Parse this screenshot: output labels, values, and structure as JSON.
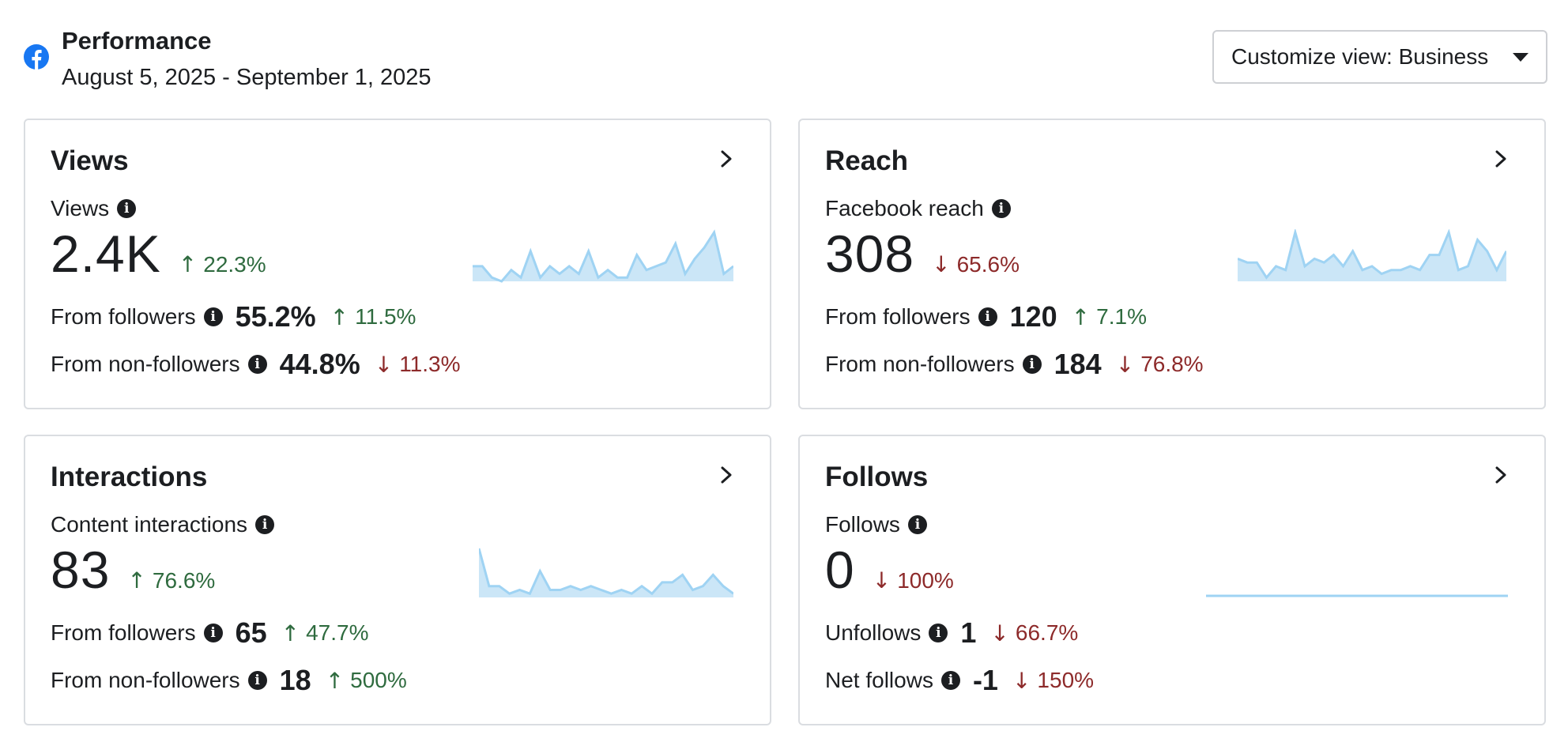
{
  "header": {
    "title": "Performance",
    "date_range": "August 5, 2025 - September 1, 2025",
    "customize_label": "Customize view: Business"
  },
  "colors": {
    "up": "#2f6b3f",
    "down": "#8d2a2a",
    "sparkline_fill": "#cbe6f7",
    "sparkline_line": "#9fd3f3",
    "facebook_blue": "#1877f2"
  },
  "icons": {
    "brand": "facebook-icon",
    "info": "info-icon",
    "chevron": "chevron-right-icon",
    "dropdown": "caret-down-icon"
  },
  "cards": [
    {
      "title": "Views",
      "metric_label": "Views",
      "value": "2.4K",
      "change": "22.3%",
      "direction": "up",
      "rows": [
        {
          "label": "From followers",
          "value": "55.2%",
          "change": "11.5%",
          "direction": "up"
        },
        {
          "label": "From non-followers",
          "value": "44.8%",
          "change": "11.3%",
          "direction": "down"
        }
      ],
      "sparkline": [
        4,
        4,
        1,
        0,
        3,
        1,
        8,
        1,
        4,
        2,
        4,
        2,
        8,
        1,
        3,
        1,
        1,
        7,
        3,
        4,
        5,
        10,
        2,
        6,
        9,
        13,
        2,
        4
      ]
    },
    {
      "title": "Reach",
      "metric_label": "Facebook reach",
      "value": "308",
      "change": "65.6%",
      "direction": "down",
      "rows": [
        {
          "label": "From followers",
          "value": "120",
          "change": "7.1%",
          "direction": "up"
        },
        {
          "label": "From non-followers",
          "value": "184",
          "change": "76.8%",
          "direction": "down"
        }
      ],
      "sparkline": [
        6,
        5,
        5,
        1,
        4,
        3,
        13,
        4,
        6,
        5,
        7,
        4,
        8,
        3,
        4,
        2,
        3,
        3,
        4,
        3,
        7,
        7,
        13,
        3,
        4,
        11,
        8,
        3,
        8
      ]
    },
    {
      "title": "Interactions",
      "metric_label": "Content interactions",
      "value": "83",
      "change": "76.6%",
      "direction": "up",
      "rows": [
        {
          "label": "From followers",
          "value": "65",
          "change": "47.7%",
          "direction": "up"
        },
        {
          "label": "From non-followers",
          "value": "18",
          "change": "500%",
          "direction": "up"
        }
      ],
      "sparkline": [
        13,
        3,
        3,
        1,
        2,
        1,
        7,
        2,
        2,
        3,
        2,
        3,
        2,
        1,
        2,
        1,
        3,
        1,
        4,
        4,
        6,
        2,
        3,
        6,
        3,
        1
      ]
    },
    {
      "title": "Follows",
      "metric_label": "Follows",
      "value": "0",
      "change": "100%",
      "direction": "down",
      "rows": [
        {
          "label": "Unfollows",
          "value": "1",
          "change": "66.7%",
          "direction": "down"
        },
        {
          "label": "Net follows",
          "value": "-1",
          "change": "150%",
          "direction": "down"
        }
      ],
      "sparkline": [
        0,
        0,
        0,
        0,
        0,
        0,
        0,
        0,
        0,
        0,
        0,
        0,
        0,
        0,
        0,
        0,
        0,
        0,
        0,
        0,
        0,
        0,
        0,
        0,
        0,
        0,
        0,
        0
      ]
    }
  ]
}
